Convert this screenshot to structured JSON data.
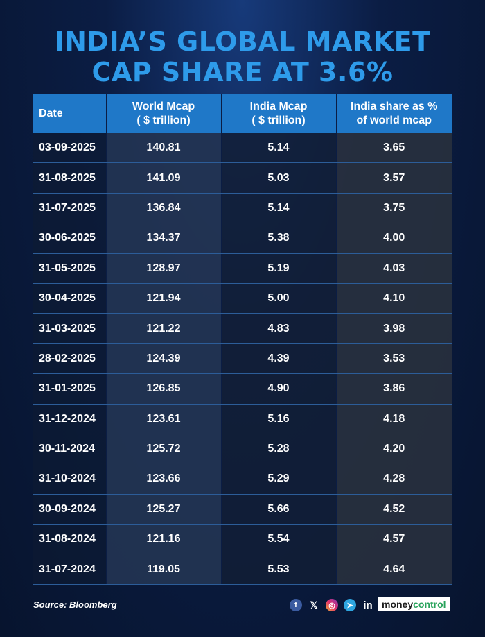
{
  "title": {
    "line1": "INDIA’S GLOBAL MARKET",
    "line2": "CAP SHARE AT 3.6%"
  },
  "chart_data": {
    "type": "table",
    "title": "INDIA’S GLOBAL MARKET CAP SHARE AT 3.6%",
    "columns": [
      "Date",
      "World Mcap ( $ trillion)",
      "India Mcap ( $ trillion)",
      "India share as % of world mcap"
    ],
    "rows": [
      [
        "03-09-2025",
        "140.81",
        "5.14",
        "3.65"
      ],
      [
        "31-08-2025",
        "141.09",
        "5.03",
        "3.57"
      ],
      [
        "31-07-2025",
        "136.84",
        "5.14",
        "3.75"
      ],
      [
        "30-06-2025",
        "134.37",
        "5.38",
        "4.00"
      ],
      [
        "31-05-2025",
        "128.97",
        "5.19",
        "4.03"
      ],
      [
        "30-04-2025",
        "121.94",
        "5.00",
        "4.10"
      ],
      [
        "31-03-2025",
        "121.22",
        "4.83",
        "3.98"
      ],
      [
        "28-02-2025",
        "124.39",
        "4.39",
        "3.53"
      ],
      [
        "31-01-2025",
        "126.85",
        "4.90",
        "3.86"
      ],
      [
        "31-12-2024",
        "123.61",
        "5.16",
        "4.18"
      ],
      [
        "30-11-2024",
        "125.72",
        "5.28",
        "4.20"
      ],
      [
        "31-10-2024",
        "123.66",
        "5.29",
        "4.28"
      ],
      [
        "30-09-2024",
        "125.27",
        "5.66",
        "4.52"
      ],
      [
        "31-08-2024",
        "121.16",
        "5.54",
        "4.57"
      ],
      [
        "31-07-2024",
        "119.05",
        "5.53",
        "4.64"
      ]
    ]
  },
  "header": {
    "date": "Date",
    "world_line1": "World Mcap",
    "world_line2": "( $ trillion)",
    "india_line1": "India Mcap",
    "india_line2": "( $ trillion)",
    "share_line1": "India share as %",
    "share_line2": "of world mcap"
  },
  "footer": {
    "source": "Source: Bloomberg",
    "brand_part1": "money",
    "brand_part2": "control",
    "icons": [
      "facebook-icon",
      "x-icon",
      "instagram-icon",
      "telegram-icon",
      "linkedin-icon"
    ]
  },
  "colors": {
    "title": "#2e9bea",
    "header_bg": "#1f78c8",
    "background": "#0b1d44"
  }
}
